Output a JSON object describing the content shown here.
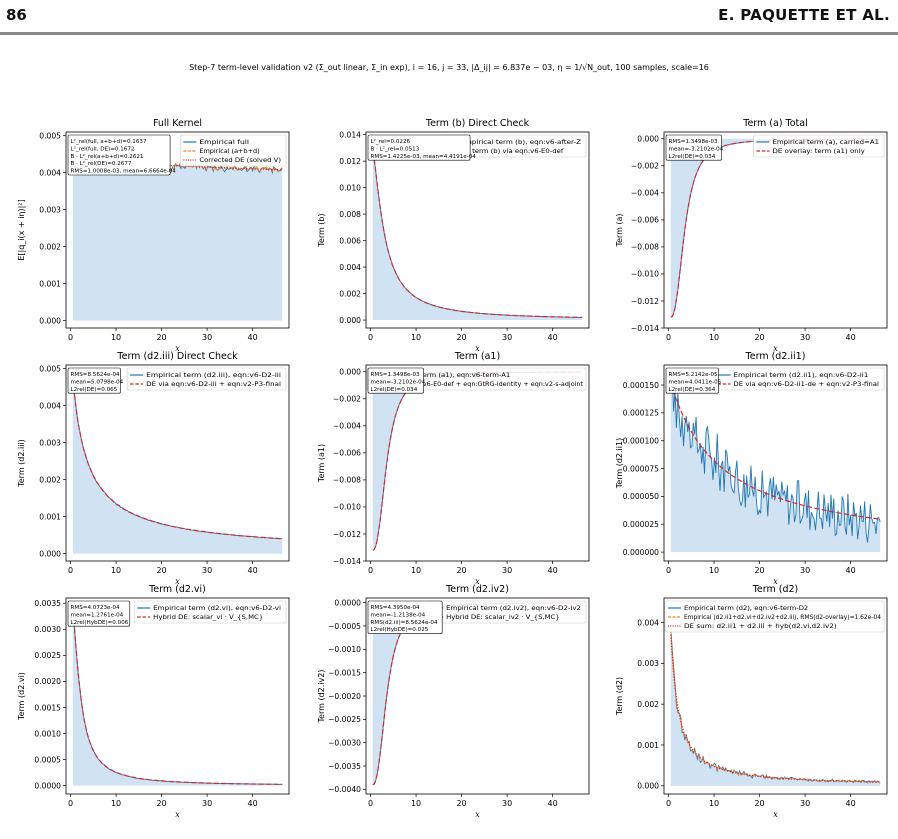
{
  "page": {
    "page_number": "86",
    "authors": "E. PAQUETTE ET AL.",
    "suptitle": "Step-7 term-level validation v2 (Σ_out linear, Σ_in exp), i = 16, j = 33, |Δ_ij| = 6.837e − 03, η = 1/√N_out, 100 samples, scale=16"
  },
  "colors": {
    "empirical": "#1f77b4",
    "fill": "#c6dbef",
    "orange": "#ff7f0e",
    "red": "#d62728"
  },
  "chart_data": [
    {
      "id": "full",
      "type": "line",
      "title": "Full Kernel",
      "xlabel": "x",
      "ylabel": "E[|q_i(x + iη)|²]",
      "xlim": [
        -1,
        48
      ],
      "ylim": [
        -0.0002,
        0.0051
      ],
      "xticks": [
        0,
        10,
        20,
        30,
        40
      ],
      "yticks": [
        0.0,
        0.001,
        0.002,
        0.003,
        0.004,
        0.005
      ],
      "ytick_labels": [
        "0.000",
        "0.001",
        "0.002",
        "0.003",
        "0.004",
        "0.005"
      ],
      "curve": {
        "kind": "decay",
        "a": 0.0043,
        "c": 0.0012,
        "p": 1.0,
        "x0": 0.5,
        "x1": 46.5
      },
      "noise": [
        0.00032,
        9e-05
      ],
      "seed": 3,
      "series": [
        {
          "name": "Empirical full",
          "style": "emp"
        },
        {
          "name": "Empirical (a+b+d)",
          "style": "orange"
        },
        {
          "name": "Corrected DE (solved V)",
          "style": "dotred"
        }
      ],
      "legend": "top-right",
      "stats": [
        "L²_rel(full, a+b+d)=0.1637",
        "L²_rel(full, DE)=0.1672",
        "B · L²_rel(a+b+d)=0.2621",
        "B · L²_rel(DE)=0.2677",
        "RMS=1.0008e-03, mean=6.6664e-04"
      ]
    },
    {
      "id": "b",
      "type": "line",
      "title": "Term (b) Direct Check",
      "xlabel": "x",
      "ylabel": "Term (b)",
      "xlim": [
        -1,
        48
      ],
      "ylim": [
        -0.0006,
        0.0142
      ],
      "xticks": [
        0,
        10,
        20,
        30,
        40
      ],
      "yticks": [
        0.0,
        0.002,
        0.004,
        0.006,
        0.008,
        0.01,
        0.012,
        0.014
      ],
      "ytick_labels": [
        "0.000",
        "0.002",
        "0.004",
        "0.006",
        "0.008",
        "0.010",
        "0.012",
        "0.014"
      ],
      "curve": {
        "kind": "decay",
        "a": 0.0127,
        "c": 0.38,
        "p": 1.45,
        "x0": 0.5,
        "x1": 46.5
      },
      "noise": [
        2e-05,
        0.0
      ],
      "seed": 5,
      "series": [
        {
          "name": "Empirical term (b), eqn:v6-after-Z",
          "style": "emp"
        },
        {
          "name": "DE term (b) via eqn:v6-E0-def",
          "style": "dashred"
        }
      ],
      "legend": "top-right",
      "stats": [
        "L²_rel=0.0226",
        "B · L²_rel=0.0513",
        "RMS=1.4225e-03, mean=4.4191e-04"
      ]
    },
    {
      "id": "a",
      "type": "line",
      "title": "Term (a) Total",
      "xlabel": "x",
      "ylabel": "Term (a)",
      "xlim": [
        -1,
        48
      ],
      "ylim": [
        -0.014,
        0.0005
      ],
      "xticks": [
        0,
        10,
        20,
        30,
        40
      ],
      "yticks": [
        0.0,
        -0.002,
        -0.004,
        -0.006,
        -0.008,
        -0.01,
        -0.012,
        -0.014
      ],
      "ytick_labels": [
        "0.000",
        "−0.002",
        "−0.004",
        "−0.006",
        "−0.008",
        "−0.010",
        "−0.012",
        "−0.014"
      ],
      "curve": {
        "kind": "neg",
        "a": -0.0132,
        "c": 0.32,
        "p": 2.4,
        "x0": 0.5,
        "x1": 46.5
      },
      "noise": [
        0.0,
        0.0
      ],
      "seed": 7,
      "series": [
        {
          "name": "Empirical term (a), carried=A1",
          "style": "emp"
        },
        {
          "name": "DE overlay: term (a1) only",
          "style": "dashred"
        }
      ],
      "legend": "top-right",
      "stats": [
        "RMS=1.3498e-03",
        "mean=-3.2102e-04",
        "L2rel(DE)=0.034"
      ]
    },
    {
      "id": "d2iii",
      "type": "line",
      "title": "Term (d2.iii) Direct Check",
      "xlabel": "x",
      "ylabel": "Term (d2.iii)",
      "xlim": [
        -1,
        48
      ],
      "ylim": [
        -0.0002,
        0.0051
      ],
      "xticks": [
        0,
        10,
        20,
        30,
        40
      ],
      "yticks": [
        0.0,
        0.001,
        0.002,
        0.003,
        0.004,
        0.005
      ],
      "ytick_labels": [
        "0.000",
        "0.001",
        "0.002",
        "0.003",
        "0.004",
        "0.005"
      ],
      "curve": {
        "kind": "decay",
        "a": 0.0049,
        "c": 0.3,
        "p": 0.92,
        "x0": 0.5,
        "x1": 46.5
      },
      "noise": [
        4e-05,
        0.0
      ],
      "seed": 11,
      "series": [
        {
          "name": "Empirical term (d2.iii), eqn:v6-D2-iii",
          "style": "emp"
        },
        {
          "name": "DE via eqn:v6-D2-iii + eqn:v2-P3-final",
          "style": "dashred"
        }
      ],
      "legend": "top-right",
      "stats": [
        "RMS=8.5624e-04",
        "mean=5.0798e-04",
        "L2rel(DE)=0.065"
      ]
    },
    {
      "id": "a1",
      "type": "line",
      "title": "Term (a1)",
      "xlabel": "x",
      "ylabel": "Term (a1)",
      "xlim": [
        -1,
        48
      ],
      "ylim": [
        -0.014,
        0.0005
      ],
      "xticks": [
        0,
        10,
        20,
        30,
        40
      ],
      "yticks": [
        0.0,
        -0.002,
        -0.004,
        -0.006,
        -0.008,
        -0.01,
        -0.012,
        -0.014
      ],
      "ytick_labels": [
        "0.000",
        "−0.002",
        "−0.004",
        "−0.006",
        "−0.008",
        "−0.010",
        "−0.012",
        "−0.014"
      ],
      "curve": {
        "kind": "neg",
        "a": -0.0132,
        "c": 0.32,
        "p": 2.4,
        "x0": 0.5,
        "x1": 46.5
      },
      "noise": [
        0.0,
        0.0
      ],
      "seed": 13,
      "series": [
        {
          "name": "Empirical term (a1), eqn:v6-term-A1",
          "style": "emp"
        },
        {
          "name": "DE via eqn:v6-E0-def + eqn:GtRG-identity + eqn:v2-s-adjoint",
          "style": "dashred"
        }
      ],
      "legend": "top-right",
      "stats": [
        "RMS=1.3498e-03",
        "mean=-3.2102e-04",
        "L2rel(DE)=0.034"
      ]
    },
    {
      "id": "d2ii1",
      "type": "line",
      "title": "Term (d2.ii1)",
      "xlabel": "x",
      "ylabel": "Term (d2.ii1)",
      "xlim": [
        -1,
        48
      ],
      "ylim": [
        -8e-06,
        0.000168
      ],
      "xticks": [
        0,
        10,
        20,
        30,
        40
      ],
      "yticks": [
        0.0,
        2.5e-05,
        5e-05,
        7.5e-05,
        0.0001,
        0.000125,
        0.00015
      ],
      "ytick_labels": [
        "0.000000",
        "0.000025",
        "0.000050",
        "0.000075",
        "0.000100",
        "0.000125",
        "0.000150"
      ],
      "curve": {
        "kind": "decay",
        "a": 0.000152,
        "c": 0.09,
        "p": 1.0,
        "x0": 0.5,
        "x1": 46.5
      },
      "noise": [
        1.8e-05,
        2.2e-05
      ],
      "seed": 17,
      "series": [
        {
          "name": "Empirical term (d2.ii1), eqn:v6-D2-ii1",
          "style": "emp"
        },
        {
          "name": "DE via eqn:v6-D2-ii1-de + eqn:v2-P3-final",
          "style": "dashred"
        }
      ],
      "legend": "top-right",
      "stats": [
        "RMS=5.2142e-05",
        "mean=4.0411e-05",
        "L2rel(DE)=0.364"
      ]
    },
    {
      "id": "d2vi",
      "type": "line",
      "title": "Term (d2.vi)",
      "xlabel": "x",
      "ylabel": "Term (d2.vi)",
      "xlim": [
        -1,
        48
      ],
      "ylim": [
        -0.00016,
        0.0036
      ],
      "xticks": [
        0,
        10,
        20,
        30,
        40
      ],
      "yticks": [
        0.0,
        0.0005,
        0.001,
        0.0015,
        0.002,
        0.0025,
        0.003,
        0.0035
      ],
      "ytick_labels": [
        "0.0000",
        "0.0005",
        "0.0010",
        "0.0015",
        "0.0020",
        "0.0025",
        "0.0030",
        "0.0035"
      ],
      "curve": {
        "kind": "decay",
        "a": 0.0033,
        "c": 0.55,
        "p": 1.5,
        "x0": 0.5,
        "x1": 46.5
      },
      "noise": [
        2e-05,
        0.0
      ],
      "seed": 19,
      "series": [
        {
          "name": "Empirical term (d2.vi), eqn:v6-D2-vi",
          "style": "emp"
        },
        {
          "name": "Hybrid DE: scalar_vi · V_{S,MC}",
          "style": "dashred"
        }
      ],
      "legend": "top-right",
      "stats": [
        "RMS=4.0723e-04",
        "mean=1.2761e-04",
        "L2rel(HybDE)=0.006"
      ]
    },
    {
      "id": "d2iv2",
      "type": "line",
      "title": "Term (d2.iv2)",
      "xlabel": "x",
      "ylabel": "Term (d2.iv2)",
      "xlim": [
        -1,
        48
      ],
      "ylim": [
        -0.0041,
        0.0001
      ],
      "xticks": [
        0,
        10,
        20,
        30,
        40
      ],
      "yticks": [
        0.0,
        -0.0005,
        -0.001,
        -0.0015,
        -0.002,
        -0.0025,
        -0.003,
        -0.0035,
        -0.004
      ],
      "ytick_labels": [
        "0.0000",
        "−0.0005",
        "−0.0010",
        "−0.0015",
        "−0.0020",
        "−0.0025",
        "−0.0030",
        "−0.0035",
        "−0.0040"
      ],
      "curve": {
        "kind": "neg",
        "a": -0.0039,
        "c": 0.32,
        "p": 2.4,
        "x0": 0.5,
        "x1": 46.5
      },
      "noise": [
        0.0,
        0.0
      ],
      "seed": 23,
      "series": [
        {
          "name": "Empirical term (d2.iv2), eqn:v6-D2-iv2",
          "style": "emp"
        },
        {
          "name": "Hybrid DE: scalar_iv2 · V_{S,MC}",
          "style": "dashred"
        }
      ],
      "legend": "top-right",
      "stats": [
        "RMS=4.3950e-04",
        "mean=-1.2138e-04",
        "RMS(d2.iii)=8.5624e-04",
        "L2rel(HybDE)=0.025"
      ]
    },
    {
      "id": "d2",
      "type": "line",
      "title": "Term (d2)",
      "xlabel": "x",
      "ylabel": "Term (d2)",
      "xlim": [
        -1,
        48
      ],
      "ylim": [
        -0.0002,
        0.0046
      ],
      "xticks": [
        0,
        10,
        20,
        30,
        40
      ],
      "yticks": [
        0.0,
        0.001,
        0.002,
        0.003,
        0.004
      ],
      "ytick_labels": [
        "0.000",
        "0.001",
        "0.002",
        "0.003",
        "0.004"
      ],
      "curve": {
        "kind": "decay",
        "a": 0.0037,
        "c": 0.6,
        "p": 1.1,
        "x0": 0.5,
        "x1": 46.5
      },
      "noise": [
        0.00018,
        3e-05
      ],
      "seed": 29,
      "series": [
        {
          "name": "Empirical term (d2), eqn:v6-term-D2",
          "style": "emp"
        },
        {
          "name": "Empirical (d2.ii1+d2.vi+d2.iv2+d2.iii), RMS(d2-overlay)=1.62e-04",
          "style": "orange"
        },
        {
          "name": "DE sum: d2.ii1 + d2.iii + hyb(d2.vi,d2.iv2)",
          "style": "dotred"
        }
      ],
      "legend": "top-right",
      "stats": []
    }
  ]
}
